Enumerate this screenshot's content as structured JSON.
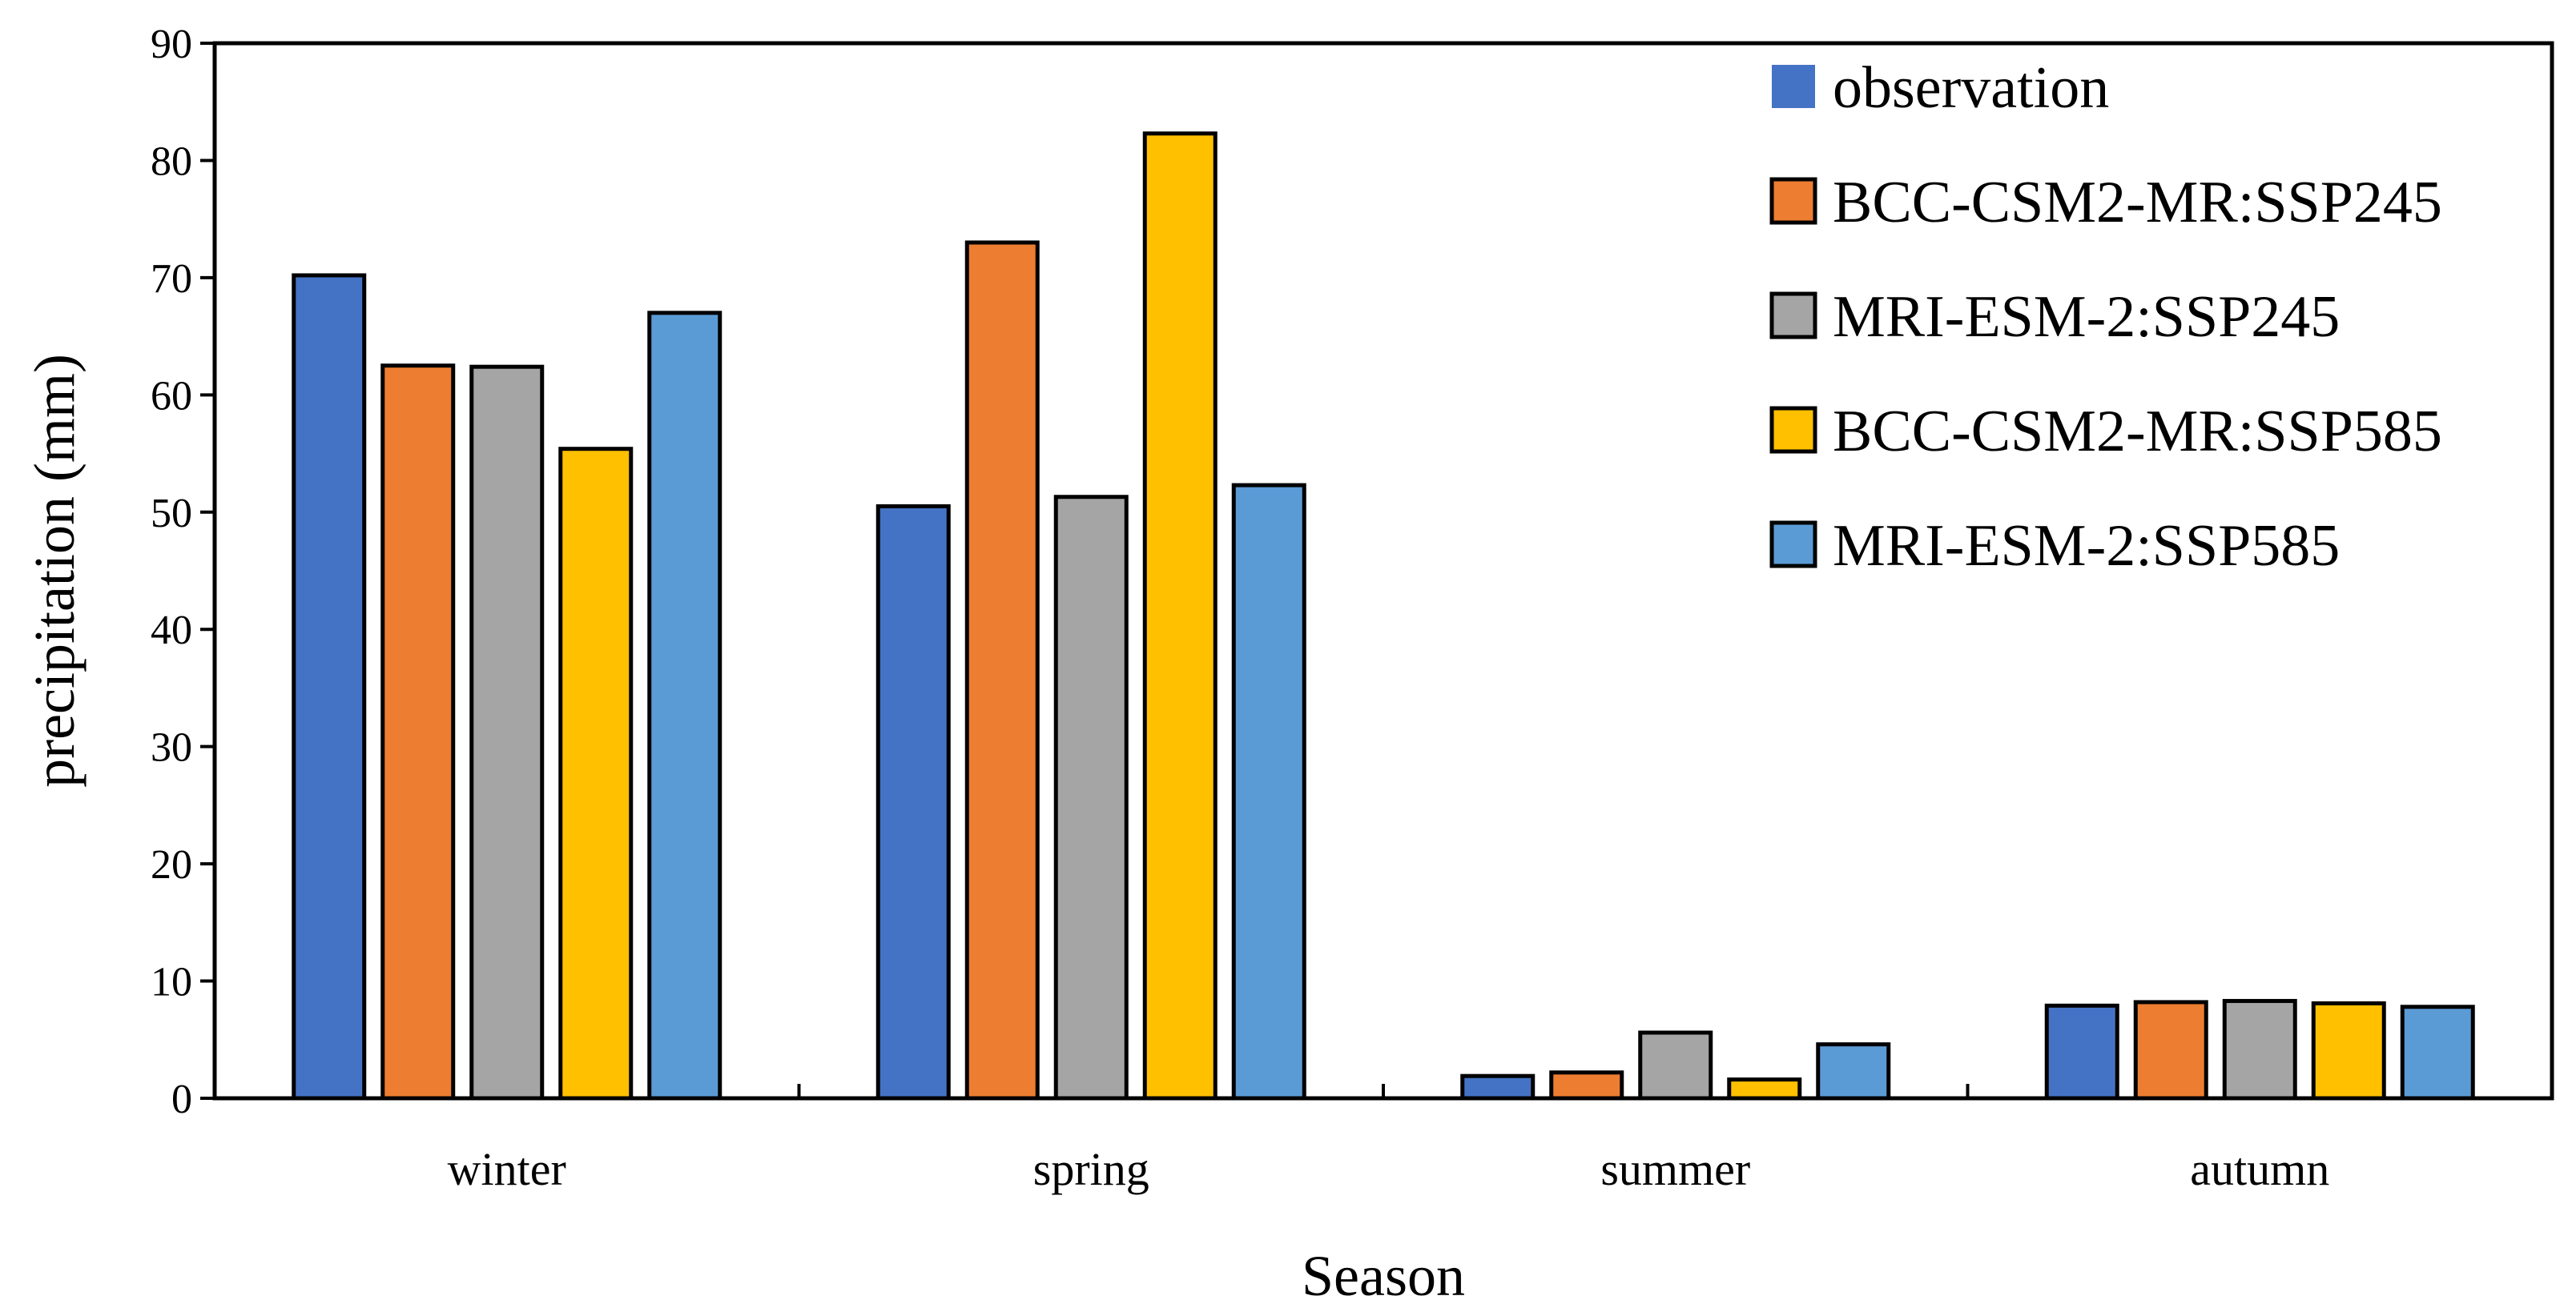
{
  "chart_data": {
    "type": "bar",
    "title": "",
    "xlabel": "Season",
    "ylabel": "precipitation (mm)",
    "ylim": [
      0,
      90
    ],
    "yticks": [
      0,
      10,
      20,
      30,
      40,
      50,
      60,
      70,
      80,
      90
    ],
    "grid": false,
    "legend_position": "top-right",
    "categories": [
      "winter",
      "spring",
      "summer",
      "autumn"
    ],
    "series": [
      {
        "name": "observation",
        "color": "#4472C4",
        "values": [
          70.2,
          50.5,
          1.9,
          7.9
        ]
      },
      {
        "name": "BCC-CSM2-MR:SSP245",
        "color": "#ED7D31",
        "values": [
          62.5,
          73.0,
          2.2,
          8.2
        ]
      },
      {
        "name": "MRI-ESM-2:SSP245",
        "color": "#A5A5A5",
        "values": [
          62.4,
          51.3,
          5.6,
          8.3
        ]
      },
      {
        "name": "BCC-CSM2-MR:SSP585",
        "color": "#FFC000",
        "values": [
          55.4,
          82.3,
          1.6,
          8.1
        ]
      },
      {
        "name": "MRI-ESM-2:SSP585",
        "color": "#5B9BD5",
        "values": [
          67.0,
          52.3,
          4.6,
          7.8
        ]
      }
    ]
  }
}
